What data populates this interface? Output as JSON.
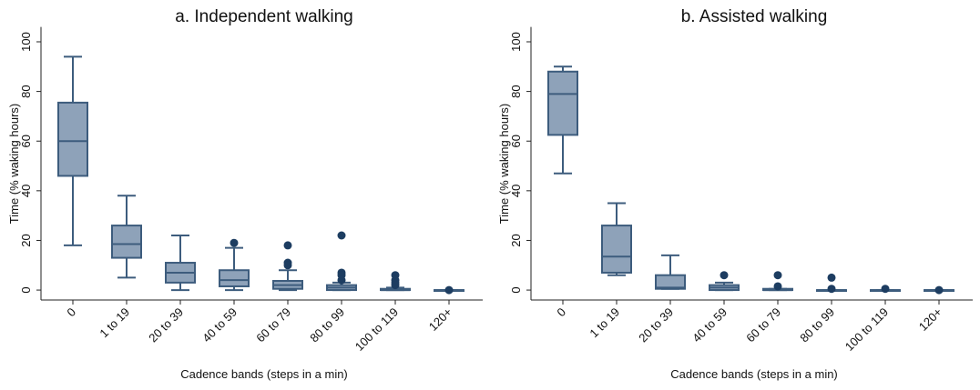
{
  "chart_data": [
    {
      "type": "box",
      "title": "a. Independent walking",
      "x_label": "Cadence bands (steps in a min)",
      "y_label": "Time (% waking hours)",
      "categories": [
        "0",
        "1 to 19",
        "20 to 39",
        "40 to 59",
        "60 to 79",
        "80 to 99",
        "100 to 119",
        "120+"
      ],
      "boxes": [
        {
          "min": 18,
          "q1": 46,
          "median": 60,
          "q3": 75.5,
          "max": 94,
          "outliers": []
        },
        {
          "min": 5,
          "q1": 13,
          "median": 18.5,
          "q3": 26,
          "max": 38,
          "outliers": []
        },
        {
          "min": 0,
          "q1": 3,
          "median": 7,
          "q3": 11,
          "max": 22,
          "outliers": []
        },
        {
          "min": 0,
          "q1": 1.5,
          "median": 4,
          "q3": 8,
          "max": 17,
          "outliers": [
            19
          ]
        },
        {
          "min": 0,
          "q1": 0.5,
          "median": 2,
          "q3": 3.7,
          "max": 8,
          "outliers": [
            18,
            11,
            10
          ]
        },
        {
          "min": 0,
          "q1": 0,
          "median": 1,
          "q3": 2,
          "max": 3,
          "outliers": [
            22,
            7,
            6,
            4
          ]
        },
        {
          "min": 0,
          "q1": 0,
          "median": 0,
          "q3": 0.5,
          "max": 1,
          "outliers": [
            6,
            4,
            3,
            2
          ]
        },
        {
          "min": 0,
          "q1": 0,
          "median": 0,
          "q3": 0,
          "max": 0,
          "outliers": [
            0
          ]
        }
      ],
      "ylim": [
        -4,
        106
      ],
      "yticks": [
        0,
        20,
        40,
        60,
        80,
        100
      ],
      "box_color": "#8ea2b9",
      "line_color": "#3d5c7d",
      "outlier_color": "#1d3d61"
    },
    {
      "type": "box",
      "title": "b. Assisted walking",
      "x_label": "Cadence bands (steps in a min)",
      "y_label": "Time (% waking hours)",
      "categories": [
        "0",
        "1 to 19",
        "20 to 39",
        "40 to 59",
        "60 to 79",
        "80 to 99",
        "100 to 119",
        "120+"
      ],
      "boxes": [
        {
          "min": 47,
          "q1": 62.5,
          "median": 79,
          "q3": 88,
          "max": 90,
          "outliers": []
        },
        {
          "min": 6,
          "q1": 7,
          "median": 13.5,
          "q3": 26,
          "max": 35,
          "outliers": []
        },
        {
          "min": 0.5,
          "q1": 0.5,
          "median": 1,
          "q3": 6,
          "max": 14,
          "outliers": []
        },
        {
          "min": 0,
          "q1": 0,
          "median": 1,
          "q3": 2,
          "max": 3,
          "outliers": [
            6
          ]
        },
        {
          "min": 0,
          "q1": 0,
          "median": 0,
          "q3": 0.5,
          "max": 0.5,
          "outliers": [
            6,
            1.5
          ]
        },
        {
          "min": 0,
          "q1": 0,
          "median": 0,
          "q3": 0,
          "max": 0,
          "outliers": [
            5,
            0.5
          ]
        },
        {
          "min": 0,
          "q1": 0,
          "median": 0,
          "q3": 0,
          "max": 0,
          "outliers": [
            0.5
          ]
        },
        {
          "min": 0,
          "q1": 0,
          "median": 0,
          "q3": 0,
          "max": 0,
          "outliers": [
            0
          ]
        }
      ],
      "ylim": [
        -4,
        106
      ],
      "yticks": [
        0,
        20,
        40,
        60,
        80,
        100
      ],
      "box_color": "#8ea2b9",
      "line_color": "#3d5c7d",
      "outlier_color": "#1d3d61"
    }
  ]
}
